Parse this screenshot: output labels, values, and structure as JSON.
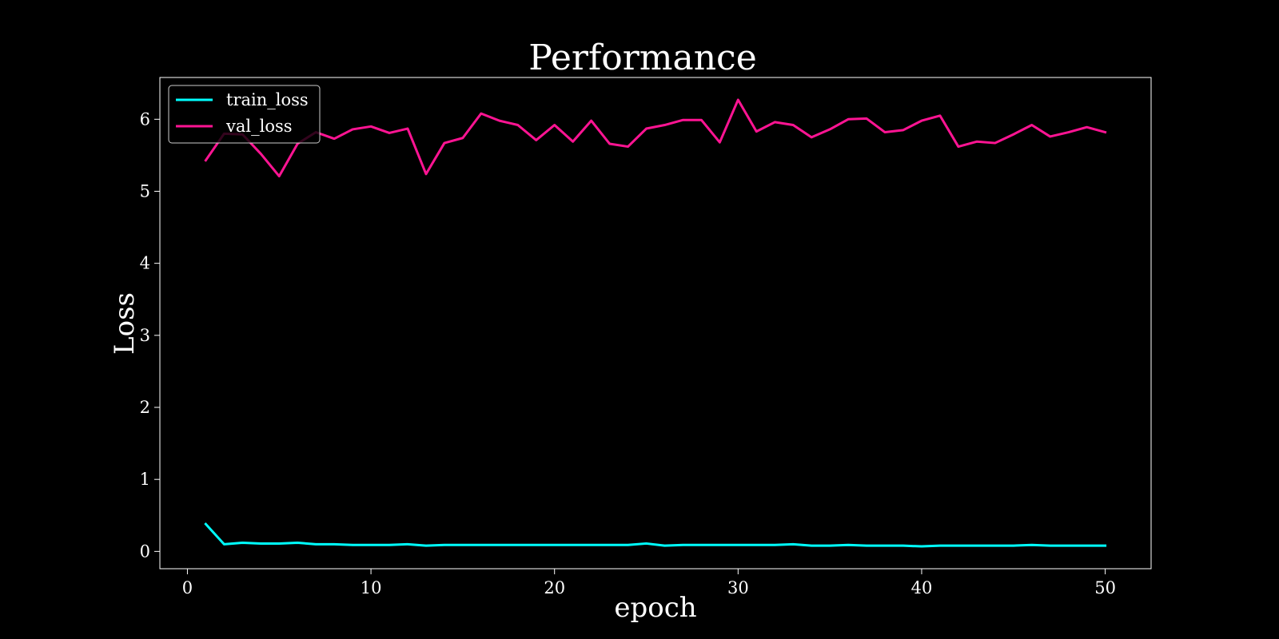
{
  "chart_data": {
    "type": "line",
    "title": "Performance",
    "xlabel": "epoch",
    "ylabel": "Loss",
    "xlim": [
      -1.5,
      52.5
    ],
    "ylim": [
      -0.24,
      6.58
    ],
    "xticks": [
      0,
      10,
      20,
      30,
      40,
      50
    ],
    "yticks": [
      0,
      1,
      2,
      3,
      4,
      5,
      6
    ],
    "grid": false,
    "legend_position": "top-left",
    "background": "#000000",
    "x": [
      1,
      2,
      3,
      4,
      5,
      6,
      7,
      8,
      9,
      10,
      11,
      12,
      13,
      14,
      15,
      16,
      17,
      18,
      19,
      20,
      21,
      22,
      23,
      24,
      25,
      26,
      27,
      28,
      29,
      30,
      31,
      32,
      33,
      34,
      35,
      36,
      37,
      38,
      39,
      40,
      41,
      42,
      43,
      44,
      45,
      46,
      47,
      48,
      49,
      50
    ],
    "series": [
      {
        "name": "train_loss",
        "color": "#00ffff",
        "values": [
          0.38,
          0.1,
          0.12,
          0.11,
          0.11,
          0.12,
          0.1,
          0.1,
          0.09,
          0.09,
          0.09,
          0.1,
          0.08,
          0.09,
          0.09,
          0.09,
          0.09,
          0.09,
          0.09,
          0.09,
          0.09,
          0.09,
          0.09,
          0.09,
          0.11,
          0.08,
          0.09,
          0.09,
          0.09,
          0.09,
          0.09,
          0.09,
          0.1,
          0.08,
          0.08,
          0.09,
          0.08,
          0.08,
          0.08,
          0.07,
          0.08,
          0.08,
          0.08,
          0.08,
          0.08,
          0.09,
          0.08,
          0.08,
          0.08,
          0.08
        ]
      },
      {
        "name": "val_loss",
        "color": "#ff1493",
        "values": [
          5.43,
          5.8,
          5.79,
          5.52,
          5.21,
          5.66,
          5.82,
          5.73,
          5.86,
          5.9,
          5.81,
          5.87,
          5.24,
          5.67,
          5.74,
          6.08,
          5.98,
          5.92,
          5.71,
          5.92,
          5.69,
          5.98,
          5.66,
          5.62,
          5.87,
          5.92,
          5.99,
          5.99,
          5.68,
          6.27,
          5.83,
          5.96,
          5.92,
          5.75,
          5.86,
          6.0,
          6.01,
          5.82,
          5.85,
          5.98,
          6.05,
          5.62,
          5.69,
          5.67,
          5.79,
          5.92,
          5.76,
          5.82,
          5.89,
          5.82
        ]
      }
    ]
  }
}
